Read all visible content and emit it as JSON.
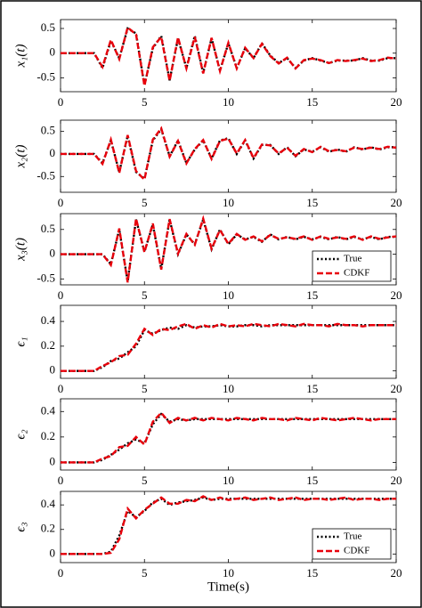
{
  "chart_data": [
    {
      "type": "line",
      "ylabel": "x₁(t)",
      "xlim": [
        0,
        20
      ],
      "xticks": [
        0,
        5,
        10,
        15,
        20
      ],
      "ylim": [
        -0.78,
        0.68
      ],
      "yticks": [
        -0.5,
        0,
        0.5
      ],
      "x": [
        0,
        0.5,
        1,
        1.5,
        2,
        2.5,
        3,
        3.5,
        4,
        4.5,
        5,
        5.5,
        6,
        6.5,
        7,
        7.5,
        8,
        8.5,
        9,
        9.5,
        10,
        10.5,
        11,
        11.5,
        12,
        12.5,
        13,
        13.5,
        14,
        14.5,
        15,
        15.5,
        16,
        16.5,
        17,
        17.5,
        18,
        18.5,
        19,
        19.5,
        20
      ],
      "series": [
        {
          "name": "True",
          "color": "#000000",
          "dash": "dotted",
          "values": [
            0,
            0,
            0,
            0,
            0,
            -0.3,
            0.25,
            -0.1,
            0.5,
            0.4,
            -0.65,
            0.1,
            0.35,
            -0.55,
            0.3,
            -0.3,
            0.35,
            -0.4,
            0.3,
            -0.35,
            0.2,
            -0.3,
            0.1,
            -0.1,
            0.2,
            -0.05,
            -0.2,
            -0.1,
            -0.3,
            -0.15,
            -0.1,
            -0.15,
            -0.2,
            -0.15,
            -0.15,
            -0.15,
            -0.1,
            -0.15,
            -0.15,
            -0.1,
            -0.1
          ]
        },
        {
          "name": "CDKF",
          "color": "#e8000b",
          "dash": "dashed",
          "values": [
            0,
            0,
            0,
            0,
            0,
            -0.28,
            0.27,
            -0.12,
            0.52,
            0.38,
            -0.66,
            0.12,
            0.33,
            -0.56,
            0.32,
            -0.31,
            0.33,
            -0.41,
            0.31,
            -0.36,
            0.21,
            -0.31,
            0.11,
            -0.1,
            0.19,
            -0.06,
            -0.21,
            -0.09,
            -0.31,
            -0.14,
            -0.11,
            -0.14,
            -0.2,
            -0.14,
            -0.16,
            -0.14,
            -0.11,
            -0.16,
            -0.14,
            -0.09,
            -0.11
          ]
        }
      ]
    },
    {
      "type": "line",
      "ylabel": "x₂(t)",
      "xlim": [
        0,
        20
      ],
      "xticks": [
        0,
        5,
        10,
        15,
        20
      ],
      "ylim": [
        -0.85,
        0.75
      ],
      "yticks": [
        -0.5,
        0,
        0.5
      ],
      "x": [
        0,
        0.5,
        1,
        1.5,
        2,
        2.5,
        3,
        3.5,
        4,
        4.5,
        5,
        5.5,
        6,
        6.5,
        7,
        7.5,
        8,
        8.5,
        9,
        9.5,
        10,
        10.5,
        11,
        11.5,
        12,
        12.5,
        13,
        13.5,
        14,
        14.5,
        15,
        15.5,
        16,
        16.5,
        17,
        17.5,
        18,
        18.5,
        19,
        19.5,
        20
      ],
      "series": [
        {
          "name": "True",
          "color": "#000000",
          "dash": "dotted",
          "values": [
            0,
            0,
            0,
            0,
            0,
            -0.2,
            0.3,
            -0.4,
            0.4,
            -0.4,
            -0.55,
            0.3,
            0.55,
            -0.05,
            0.3,
            -0.2,
            0.1,
            0.3,
            -0.1,
            0.3,
            0.35,
            0,
            0.3,
            -0.1,
            0.2,
            0.2,
            0,
            0.15,
            -0.05,
            0.1,
            0.05,
            0.15,
            0.05,
            0.1,
            0.05,
            0.15,
            0.1,
            0.15,
            0.1,
            0.15,
            0.15
          ]
        },
        {
          "name": "CDKF",
          "color": "#e8000b",
          "dash": "dashed",
          "values": [
            0,
            0,
            0,
            0,
            0,
            -0.22,
            0.32,
            -0.42,
            0.42,
            -0.38,
            -0.57,
            0.32,
            0.57,
            -0.06,
            0.29,
            -0.21,
            0.11,
            0.31,
            -0.11,
            0.29,
            0.34,
            0.01,
            0.31,
            -0.09,
            0.21,
            0.19,
            0.01,
            0.14,
            -0.04,
            0.11,
            0.04,
            0.16,
            0.06,
            0.09,
            0.06,
            0.14,
            0.11,
            0.14,
            0.11,
            0.16,
            0.14
          ]
        }
      ]
    },
    {
      "type": "line",
      "ylabel": "x₃(t)",
      "xlim": [
        0,
        20
      ],
      "xticks": [
        0,
        5,
        10,
        15,
        20
      ],
      "ylim": [
        -0.62,
        0.82
      ],
      "yticks": [
        -0.5,
        0,
        0.5
      ],
      "legend": "lower right",
      "x": [
        0,
        0.5,
        1,
        1.5,
        2,
        2.5,
        3,
        3.5,
        4,
        4.5,
        5,
        5.5,
        6,
        6.5,
        7,
        7.5,
        8,
        8.5,
        9,
        9.5,
        10,
        10.5,
        11,
        11.5,
        12,
        12.5,
        13,
        13.5,
        14,
        14.5,
        15,
        15.5,
        16,
        16.5,
        17,
        17.5,
        18,
        18.5,
        19,
        19.5,
        20
      ],
      "series": [
        {
          "name": "True",
          "color": "#000000",
          "dash": "dotted",
          "values": [
            0,
            0,
            0,
            0,
            0,
            0,
            -0.2,
            0.5,
            -0.55,
            0.7,
            0.05,
            0.6,
            -0.3,
            0.7,
            0,
            0.4,
            0.2,
            0.7,
            0.1,
            0.5,
            0.2,
            0.4,
            0.3,
            0.35,
            0.25,
            0.4,
            0.3,
            0.35,
            0.3,
            0.35,
            0.3,
            0.35,
            0.3,
            0.35,
            0.3,
            0.35,
            0.3,
            0.35,
            0.3,
            0.35,
            0.35
          ]
        },
        {
          "name": "CDKF",
          "color": "#e8000b",
          "dash": "dashed",
          "values": [
            0,
            0,
            0,
            0,
            0,
            0,
            -0.22,
            0.52,
            -0.57,
            0.72,
            0.04,
            0.62,
            -0.31,
            0.71,
            0.01,
            0.41,
            0.19,
            0.72,
            0.11,
            0.49,
            0.21,
            0.41,
            0.29,
            0.36,
            0.26,
            0.39,
            0.31,
            0.34,
            0.31,
            0.36,
            0.29,
            0.36,
            0.31,
            0.34,
            0.31,
            0.36,
            0.29,
            0.36,
            0.31,
            0.34,
            0.36
          ]
        }
      ]
    },
    {
      "type": "line",
      "ylabel": "ϵ₁",
      "xlim": [
        0,
        20
      ],
      "xticks": [
        0,
        5,
        10,
        15,
        20
      ],
      "ylim": [
        -0.06,
        0.53
      ],
      "yticks": [
        0,
        0.2,
        0.4
      ],
      "x": [
        0,
        0.5,
        1,
        1.5,
        2,
        2.5,
        3,
        3.5,
        4,
        4.5,
        5,
        5.5,
        6,
        6.5,
        7,
        7.5,
        8,
        8.5,
        9,
        9.5,
        10,
        10.5,
        11,
        11.5,
        12,
        12.5,
        13,
        13.5,
        14,
        14.5,
        15,
        15.5,
        16,
        16.5,
        17,
        17.5,
        18,
        18.5,
        19,
        19.5,
        20
      ],
      "series": [
        {
          "name": "True",
          "color": "#000000",
          "dash": "dotted",
          "values": [
            0,
            0,
            0,
            0,
            0,
            0.03,
            0.08,
            0.1,
            0.15,
            0.2,
            0.33,
            0.3,
            0.33,
            0.35,
            0.34,
            0.37,
            0.35,
            0.36,
            0.36,
            0.37,
            0.36,
            0.36,
            0.37,
            0.37,
            0.36,
            0.37,
            0.37,
            0.37,
            0.37,
            0.37,
            0.37,
            0.37,
            0.37,
            0.37,
            0.37,
            0.37,
            0.37,
            0.37,
            0.37,
            0.37,
            0.37
          ]
        },
        {
          "name": "CDKF",
          "color": "#e8000b",
          "dash": "dashed",
          "values": [
            0,
            0,
            0,
            0,
            0,
            0.04,
            0.07,
            0.12,
            0.13,
            0.22,
            0.34,
            0.29,
            0.34,
            0.33,
            0.36,
            0.38,
            0.34,
            0.37,
            0.35,
            0.38,
            0.36,
            0.37,
            0.36,
            0.38,
            0.37,
            0.36,
            0.38,
            0.37,
            0.36,
            0.38,
            0.37,
            0.37,
            0.36,
            0.38,
            0.37,
            0.37,
            0.36,
            0.37,
            0.37,
            0.37,
            0.37
          ]
        }
      ]
    },
    {
      "type": "line",
      "ylabel": "ϵ₂",
      "xlim": [
        0,
        20
      ],
      "xticks": [
        0,
        5,
        10,
        15,
        20
      ],
      "ylim": [
        -0.06,
        0.5
      ],
      "yticks": [
        0,
        0.2,
        0.4
      ],
      "x": [
        0,
        0.5,
        1,
        1.5,
        2,
        2.5,
        3,
        3.5,
        4,
        4.5,
        5,
        5.5,
        6,
        6.5,
        7,
        7.5,
        8,
        8.5,
        9,
        9.5,
        10,
        10.5,
        11,
        11.5,
        12,
        12.5,
        13,
        13.5,
        14,
        14.5,
        15,
        15.5,
        16,
        16.5,
        17,
        17.5,
        18,
        18.5,
        19,
        19.5,
        20
      ],
      "series": [
        {
          "name": "True",
          "color": "#000000",
          "dash": "dotted",
          "values": [
            0,
            0,
            0,
            0,
            0,
            0.02,
            0.06,
            0.1,
            0.15,
            0.18,
            0.15,
            0.3,
            0.38,
            0.32,
            0.34,
            0.33,
            0.34,
            0.34,
            0.34,
            0.34,
            0.34,
            0.34,
            0.34,
            0.34,
            0.34,
            0.34,
            0.34,
            0.34,
            0.34,
            0.34,
            0.34,
            0.34,
            0.34,
            0.34,
            0.34,
            0.34,
            0.34,
            0.34,
            0.34,
            0.34,
            0.34
          ]
        },
        {
          "name": "CDKF",
          "color": "#e8000b",
          "dash": "dashed",
          "values": [
            0,
            0,
            0,
            0,
            0,
            0.03,
            0.05,
            0.12,
            0.13,
            0.2,
            0.14,
            0.32,
            0.39,
            0.31,
            0.35,
            0.33,
            0.35,
            0.33,
            0.35,
            0.34,
            0.33,
            0.35,
            0.34,
            0.33,
            0.35,
            0.34,
            0.34,
            0.33,
            0.35,
            0.34,
            0.33,
            0.35,
            0.34,
            0.33,
            0.34,
            0.35,
            0.34,
            0.33,
            0.34,
            0.34,
            0.34
          ]
        }
      ]
    },
    {
      "type": "line",
      "ylabel": "ϵ₃",
      "xlabel": "Time(s)",
      "xlim": [
        0,
        20
      ],
      "xticks": [
        0,
        5,
        10,
        15,
        20
      ],
      "ylim": [
        -0.07,
        0.51
      ],
      "yticks": [
        0,
        0.2,
        0.4
      ],
      "legend": "lower right",
      "x": [
        0,
        0.5,
        1,
        1.5,
        2,
        2.5,
        3,
        3.5,
        4,
        4.5,
        5,
        5.5,
        6,
        6.5,
        7,
        7.5,
        8,
        8.5,
        9,
        9.5,
        10,
        10.5,
        11,
        11.5,
        12,
        12.5,
        13,
        13.5,
        14,
        14.5,
        15,
        15.5,
        16,
        16.5,
        17,
        17.5,
        18,
        18.5,
        19,
        19.5,
        20
      ],
      "series": [
        {
          "name": "True",
          "color": "#000000",
          "dash": "dotted",
          "values": [
            0,
            0,
            0,
            0,
            0,
            0,
            0.02,
            0.15,
            0.35,
            0.3,
            0.35,
            0.42,
            0.45,
            0.4,
            0.42,
            0.43,
            0.44,
            0.46,
            0.44,
            0.45,
            0.45,
            0.45,
            0.45,
            0.45,
            0.45,
            0.45,
            0.45,
            0.45,
            0.45,
            0.45,
            0.45,
            0.45,
            0.45,
            0.45,
            0.45,
            0.45,
            0.45,
            0.45,
            0.45,
            0.45,
            0.45
          ]
        },
        {
          "name": "CDKF",
          "color": "#e8000b",
          "dash": "dashed",
          "values": [
            0,
            0,
            0,
            0,
            0,
            0,
            0.01,
            0.12,
            0.37,
            0.29,
            0.36,
            0.41,
            0.46,
            0.41,
            0.41,
            0.44,
            0.43,
            0.47,
            0.44,
            0.46,
            0.44,
            0.45,
            0.46,
            0.44,
            0.45,
            0.46,
            0.44,
            0.45,
            0.46,
            0.44,
            0.45,
            0.45,
            0.44,
            0.45,
            0.46,
            0.44,
            0.45,
            0.45,
            0.44,
            0.45,
            0.45
          ]
        }
      ]
    }
  ]
}
